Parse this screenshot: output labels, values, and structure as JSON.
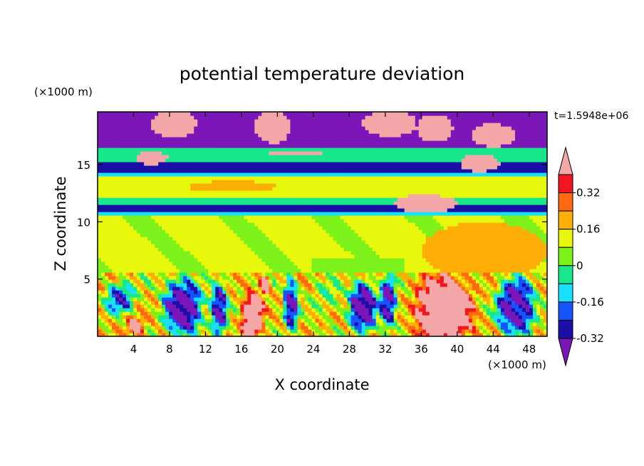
{
  "chart_data": {
    "type": "heatmap",
    "title": "potential temperature deviation",
    "xlabel": "X coordinate",
    "ylabel": "Z coordinate",
    "x_unit": "(×1000 m)",
    "y_unit": "(×1000 m)",
    "time_label": "t=1.5948e+06",
    "xlim": [
      0,
      50
    ],
    "ylim": [
      0,
      19.6
    ],
    "x_ticks": [
      "4",
      "8",
      "12",
      "16",
      "20",
      "24",
      "28",
      "32",
      "36",
      "40",
      "44",
      "48"
    ],
    "y_ticks": [
      "5",
      "10",
      "15"
    ],
    "colorbar": {
      "levels": [
        -0.4,
        -0.32,
        -0.24,
        -0.16,
        -0.08,
        0,
        0.08,
        0.16,
        0.24,
        0.32,
        0.4
      ],
      "tick_labels": [
        "0.32",
        "0.16",
        "0",
        "-0.16",
        "-0.32"
      ],
      "colors": [
        "#7b16b8",
        "#1c0fa8",
        "#1654ff",
        "#18e0ff",
        "#17e88a",
        "#7cf21a",
        "#e8f80c",
        "#ffae06",
        "#ff6a10",
        "#f21620",
        "#f4a7a7"
      ],
      "extend": "both"
    },
    "bands": [
      {
        "z": [
          0,
          5.6
        ],
        "value": "mixed",
        "note": ""
      },
      {
        "z": [
          5.6,
          10.6
        ],
        "value": 0.02
      },
      {
        "z": [
          10.6,
          11.0
        ],
        "value": -0.18
      },
      {
        "z": [
          11.0,
          11.4
        ],
        "value": -0.35
      },
      {
        "z": [
          11.4,
          12.2
        ],
        "value": -0.1
      },
      {
        "z": [
          12.2,
          14.0
        ],
        "value": 0.05
      },
      {
        "z": [
          14.0,
          14.4
        ],
        "value": -0.18
      },
      {
        "z": [
          14.4,
          15.2
        ],
        "value": -0.35
      },
      {
        "z": [
          15.2,
          16.6
        ],
        "value": -0.1
      },
      {
        "z": [
          16.6,
          19.6
        ],
        "value": -0.45
      }
    ]
  }
}
